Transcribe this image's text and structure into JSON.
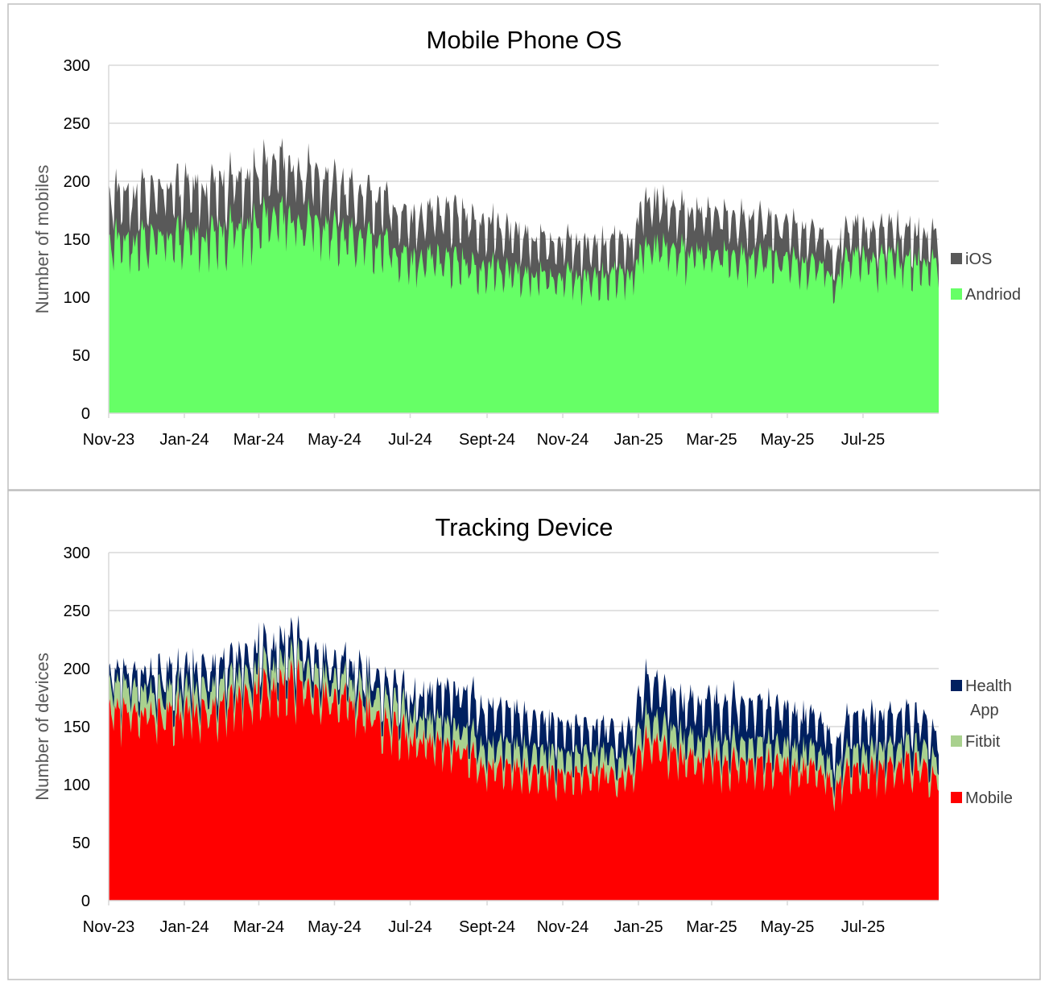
{
  "colors": {
    "ios": "#595959",
    "android": "#66ff66",
    "health_app": "#002060",
    "fitbit": "#a9d18e",
    "mobile": "#ff0000",
    "gridline": "#d9d9d9",
    "panel_border": "#bfbfbf"
  },
  "chart_data": [
    {
      "type": "area",
      "stacked": true,
      "title": "Mobile Phone OS",
      "ylabel": "Number of mobiles",
      "xlabel": "",
      "ylim": [
        0,
        300
      ],
      "yticks": [
        0,
        50,
        100,
        150,
        200,
        250,
        300
      ],
      "x_range": [
        "2023-11-01",
        "2025-08-31"
      ],
      "x_tick_labels": [
        "Nov-23",
        "Jan-24",
        "Mar-24",
        "May-24",
        "Jul-24",
        "Sept-24",
        "Nov-24",
        "Jan-25",
        "Mar-25",
        "May-25",
        "Jul-25"
      ],
      "x_tick_dates": [
        "2023-11-01",
        "2024-01-01",
        "2024-03-01",
        "2024-05-01",
        "2024-07-01",
        "2024-09-01",
        "2024-11-01",
        "2025-01-01",
        "2025-03-01",
        "2025-05-01",
        "2025-07-01"
      ],
      "legend_position": "right",
      "granularity": "daily (noisy), monthly trend shown",
      "series": [
        {
          "name": "Andriod",
          "color_key": "android",
          "trend": [
            {
              "date": "2023-11-01",
              "value": 148
            },
            {
              "date": "2023-12-01",
              "value": 150
            },
            {
              "date": "2024-01-01",
              "value": 148
            },
            {
              "date": "2024-02-01",
              "value": 155
            },
            {
              "date": "2024-03-01",
              "value": 165
            },
            {
              "date": "2024-03-25",
              "value": 170
            },
            {
              "date": "2024-05-01",
              "value": 155
            },
            {
              "date": "2024-06-01",
              "value": 148
            },
            {
              "date": "2024-07-01",
              "value": 133
            },
            {
              "date": "2024-08-01",
              "value": 133
            },
            {
              "date": "2024-09-01",
              "value": 125
            },
            {
              "date": "2024-10-01",
              "value": 120
            },
            {
              "date": "2024-11-01",
              "value": 118
            },
            {
              "date": "2024-12-01",
              "value": 117
            },
            {
              "date": "2024-12-28",
              "value": 120
            },
            {
              "date": "2025-01-05",
              "value": 148
            },
            {
              "date": "2025-02-01",
              "value": 140
            },
            {
              "date": "2025-03-01",
              "value": 135
            },
            {
              "date": "2025-04-01",
              "value": 135
            },
            {
              "date": "2025-05-01",
              "value": 130
            },
            {
              "date": "2025-06-01",
              "value": 125
            },
            {
              "date": "2025-06-08",
              "value": 108
            },
            {
              "date": "2025-06-15",
              "value": 128
            },
            {
              "date": "2025-07-01",
              "value": 132
            },
            {
              "date": "2025-08-01",
              "value": 132
            },
            {
              "date": "2025-08-31",
              "value": 126
            }
          ]
        },
        {
          "name": "iOS",
          "color_key": "ios",
          "trend": [
            {
              "date": "2023-11-01",
              "value": 40
            },
            {
              "date": "2023-12-01",
              "value": 40
            },
            {
              "date": "2024-01-01",
              "value": 43
            },
            {
              "date": "2024-02-01",
              "value": 42
            },
            {
              "date": "2024-03-01",
              "value": 43
            },
            {
              "date": "2024-03-25",
              "value": 45
            },
            {
              "date": "2024-05-01",
              "value": 40
            },
            {
              "date": "2024-06-01",
              "value": 38
            },
            {
              "date": "2024-07-01",
              "value": 35
            },
            {
              "date": "2024-08-01",
              "value": 42
            },
            {
              "date": "2024-09-01",
              "value": 38
            },
            {
              "date": "2024-10-01",
              "value": 32
            },
            {
              "date": "2024-11-01",
              "value": 30
            },
            {
              "date": "2024-12-01",
              "value": 28
            },
            {
              "date": "2024-12-28",
              "value": 28
            },
            {
              "date": "2025-01-05",
              "value": 40
            },
            {
              "date": "2025-02-01",
              "value": 35
            },
            {
              "date": "2025-03-01",
              "value": 35
            },
            {
              "date": "2025-04-01",
              "value": 33
            },
            {
              "date": "2025-05-01",
              "value": 30
            },
            {
              "date": "2025-06-01",
              "value": 28
            },
            {
              "date": "2025-06-08",
              "value": 22
            },
            {
              "date": "2025-06-15",
              "value": 25
            },
            {
              "date": "2025-07-01",
              "value": 25
            },
            {
              "date": "2025-08-01",
              "value": 25
            },
            {
              "date": "2025-08-31",
              "value": 24
            }
          ]
        }
      ]
    },
    {
      "type": "area",
      "stacked": true,
      "title": "Tracking Device",
      "ylabel": "Number of devices",
      "xlabel": "",
      "ylim": [
        0,
        300
      ],
      "yticks": [
        0,
        50,
        100,
        150,
        200,
        250,
        300
      ],
      "x_range": [
        "2023-11-01",
        "2025-08-31"
      ],
      "x_tick_labels": [
        "Nov-23",
        "Jan-24",
        "Mar-24",
        "May-24",
        "Jul-24",
        "Sept-24",
        "Nov-24",
        "Jan-25",
        "Mar-25",
        "May-25",
        "Jul-25"
      ],
      "x_tick_dates": [
        "2023-11-01",
        "2024-01-01",
        "2024-03-01",
        "2024-05-01",
        "2024-07-01",
        "2024-09-01",
        "2024-11-01",
        "2025-01-01",
        "2025-03-01",
        "2025-05-01",
        "2025-07-01"
      ],
      "legend_position": "right",
      "granularity": "daily (noisy), monthly trend shown",
      "series": [
        {
          "name": "Mobile",
          "color_key": "mobile",
          "trend": [
            {
              "date": "2023-11-01",
              "value": 165
            },
            {
              "date": "2023-12-01",
              "value": 158
            },
            {
              "date": "2024-01-01",
              "value": 160
            },
            {
              "date": "2024-02-01",
              "value": 165
            },
            {
              "date": "2024-03-01",
              "value": 180
            },
            {
              "date": "2024-03-25",
              "value": 188
            },
            {
              "date": "2024-05-01",
              "value": 172
            },
            {
              "date": "2024-06-01",
              "value": 160
            },
            {
              "date": "2024-07-01",
              "value": 138
            },
            {
              "date": "2024-08-01",
              "value": 132
            },
            {
              "date": "2024-09-01",
              "value": 115
            },
            {
              "date": "2024-10-01",
              "value": 110
            },
            {
              "date": "2024-11-01",
              "value": 108
            },
            {
              "date": "2024-12-01",
              "value": 108
            },
            {
              "date": "2024-12-28",
              "value": 108
            },
            {
              "date": "2025-01-05",
              "value": 135
            },
            {
              "date": "2025-02-01",
              "value": 125
            },
            {
              "date": "2025-03-01",
              "value": 118
            },
            {
              "date": "2025-04-01",
              "value": 118
            },
            {
              "date": "2025-05-01",
              "value": 115
            },
            {
              "date": "2025-06-01",
              "value": 110
            },
            {
              "date": "2025-06-08",
              "value": 95
            },
            {
              "date": "2025-06-15",
              "value": 108
            },
            {
              "date": "2025-07-01",
              "value": 112
            },
            {
              "date": "2025-08-01",
              "value": 115
            },
            {
              "date": "2025-08-31",
              "value": 110
            }
          ]
        },
        {
          "name": "Fitbit",
          "color_key": "fitbit",
          "trend": [
            {
              "date": "2023-11-01",
              "value": 22
            },
            {
              "date": "2023-12-01",
              "value": 20
            },
            {
              "date": "2024-01-01",
              "value": 18
            },
            {
              "date": "2024-02-01",
              "value": 18
            },
            {
              "date": "2024-03-01",
              "value": 17
            },
            {
              "date": "2024-03-25",
              "value": 17
            },
            {
              "date": "2024-05-01",
              "value": 17
            },
            {
              "date": "2024-06-01",
              "value": 18
            },
            {
              "date": "2024-07-01",
              "value": 20
            },
            {
              "date": "2024-08-01",
              "value": 18
            },
            {
              "date": "2024-09-01",
              "value": 18
            },
            {
              "date": "2024-10-01",
              "value": 18
            },
            {
              "date": "2024-11-01",
              "value": 17
            },
            {
              "date": "2024-12-01",
              "value": 17
            },
            {
              "date": "2024-12-28",
              "value": 17
            },
            {
              "date": "2025-01-05",
              "value": 20
            },
            {
              "date": "2025-02-01",
              "value": 18
            },
            {
              "date": "2025-03-01",
              "value": 17
            },
            {
              "date": "2025-04-01",
              "value": 17
            },
            {
              "date": "2025-05-01",
              "value": 16
            },
            {
              "date": "2025-06-01",
              "value": 16
            },
            {
              "date": "2025-06-08",
              "value": 14
            },
            {
              "date": "2025-06-15",
              "value": 16
            },
            {
              "date": "2025-07-01",
              "value": 16
            },
            {
              "date": "2025-08-01",
              "value": 16
            },
            {
              "date": "2025-08-31",
              "value": 16
            }
          ]
        },
        {
          "name": "Health App",
          "color_key": "health_app",
          "trend": [
            {
              "date": "2023-11-01",
              "value": 10
            },
            {
              "date": "2023-12-01",
              "value": 15
            },
            {
              "date": "2024-01-01",
              "value": 18
            },
            {
              "date": "2024-02-01",
              "value": 17
            },
            {
              "date": "2024-03-01",
              "value": 18
            },
            {
              "date": "2024-03-25",
              "value": 18
            },
            {
              "date": "2024-05-01",
              "value": 15
            },
            {
              "date": "2024-06-01",
              "value": 15
            },
            {
              "date": "2024-07-01",
              "value": 15
            },
            {
              "date": "2024-08-01",
              "value": 30
            },
            {
              "date": "2024-09-01",
              "value": 32
            },
            {
              "date": "2024-10-01",
              "value": 28
            },
            {
              "date": "2024-11-01",
              "value": 25
            },
            {
              "date": "2024-12-01",
              "value": 22
            },
            {
              "date": "2024-12-28",
              "value": 22
            },
            {
              "date": "2025-01-05",
              "value": 33
            },
            {
              "date": "2025-02-01",
              "value": 30
            },
            {
              "date": "2025-03-01",
              "value": 33
            },
            {
              "date": "2025-04-01",
              "value": 33
            },
            {
              "date": "2025-05-01",
              "value": 30
            },
            {
              "date": "2025-06-01",
              "value": 27
            },
            {
              "date": "2025-06-08",
              "value": 20
            },
            {
              "date": "2025-06-15",
              "value": 26
            },
            {
              "date": "2025-07-01",
              "value": 28
            },
            {
              "date": "2025-08-01",
              "value": 26
            },
            {
              "date": "2025-08-31",
              "value": 22
            }
          ]
        }
      ]
    }
  ],
  "legends": [
    [
      {
        "name": "iOS",
        "color_key": "ios"
      },
      {
        "name": "Andriod",
        "color_key": "android"
      }
    ],
    [
      {
        "name": "Health",
        "name2": "App",
        "color_key": "health_app"
      },
      {
        "name": "Fitbit",
        "color_key": "fitbit"
      },
      {
        "name": "Mobile",
        "color_key": "mobile"
      }
    ]
  ]
}
